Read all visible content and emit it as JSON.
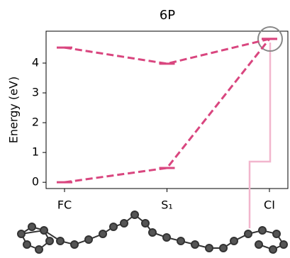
{
  "chart_data": {
    "type": "line",
    "title": "6P",
    "y_label": "Energy (eV)",
    "categories": [
      "FC",
      "S₁",
      "CI"
    ],
    "series": [
      {
        "color": "#d9467f",
        "values": [
          4.52,
          3.98,
          4.81
        ]
      },
      {
        "color": "#d9467f",
        "values": [
          0,
          0.48,
          4.81
        ]
      }
    ],
    "ylim": [
      -0.21,
      5.07
    ],
    "yticks": [
      0,
      1,
      2,
      3,
      4
    ]
  }
}
